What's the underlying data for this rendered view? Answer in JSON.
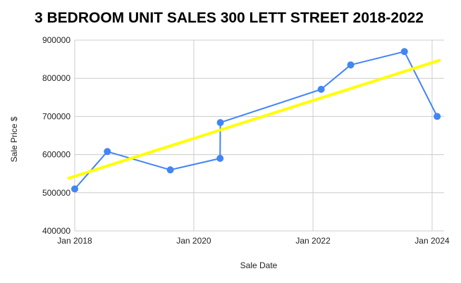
{
  "chart_data": {
    "type": "scatter",
    "title": "3 BEDROOM UNIT SALES 300 LETT STREET 2018-2022",
    "xlabel": "Sale Date",
    "ylabel": "Sale Price $",
    "x_ticks": [
      "Jan 2018",
      "Jan 2020",
      "Jan 2022",
      "Jan 2024"
    ],
    "y_ticks": [
      "400000",
      "500000",
      "600000",
      "700000",
      "800000",
      "900000"
    ],
    "xlim": [
      "2018-01-01",
      "2024-01-01"
    ],
    "ylim": [
      400000,
      900000
    ],
    "grid": true,
    "legend": "none",
    "series": [
      {
        "style": "line-markers",
        "color": "#4285f4",
        "points": [
          {
            "x": "2018-01-01",
            "y": 510000
          },
          {
            "x": "2018-07-20",
            "y": 608000
          },
          {
            "x": "2019-08-10",
            "y": 560000
          },
          {
            "x": "2020-06-10",
            "y": 590000
          },
          {
            "x": "2020-06-12",
            "y": 684000
          },
          {
            "x": "2022-02-20",
            "y": 771000
          },
          {
            "x": "2022-08-20",
            "y": 835000
          },
          {
            "x": "2023-07-15",
            "y": 870000
          },
          {
            "x": "2024-02-01",
            "y": 700000
          }
        ]
      },
      {
        "style": "trendline",
        "color": "#ffff00",
        "points": [
          {
            "x": "2017-11-25",
            "y": 538000
          },
          {
            "x": "2024-02-15",
            "y": 847000
          }
        ]
      }
    ]
  }
}
